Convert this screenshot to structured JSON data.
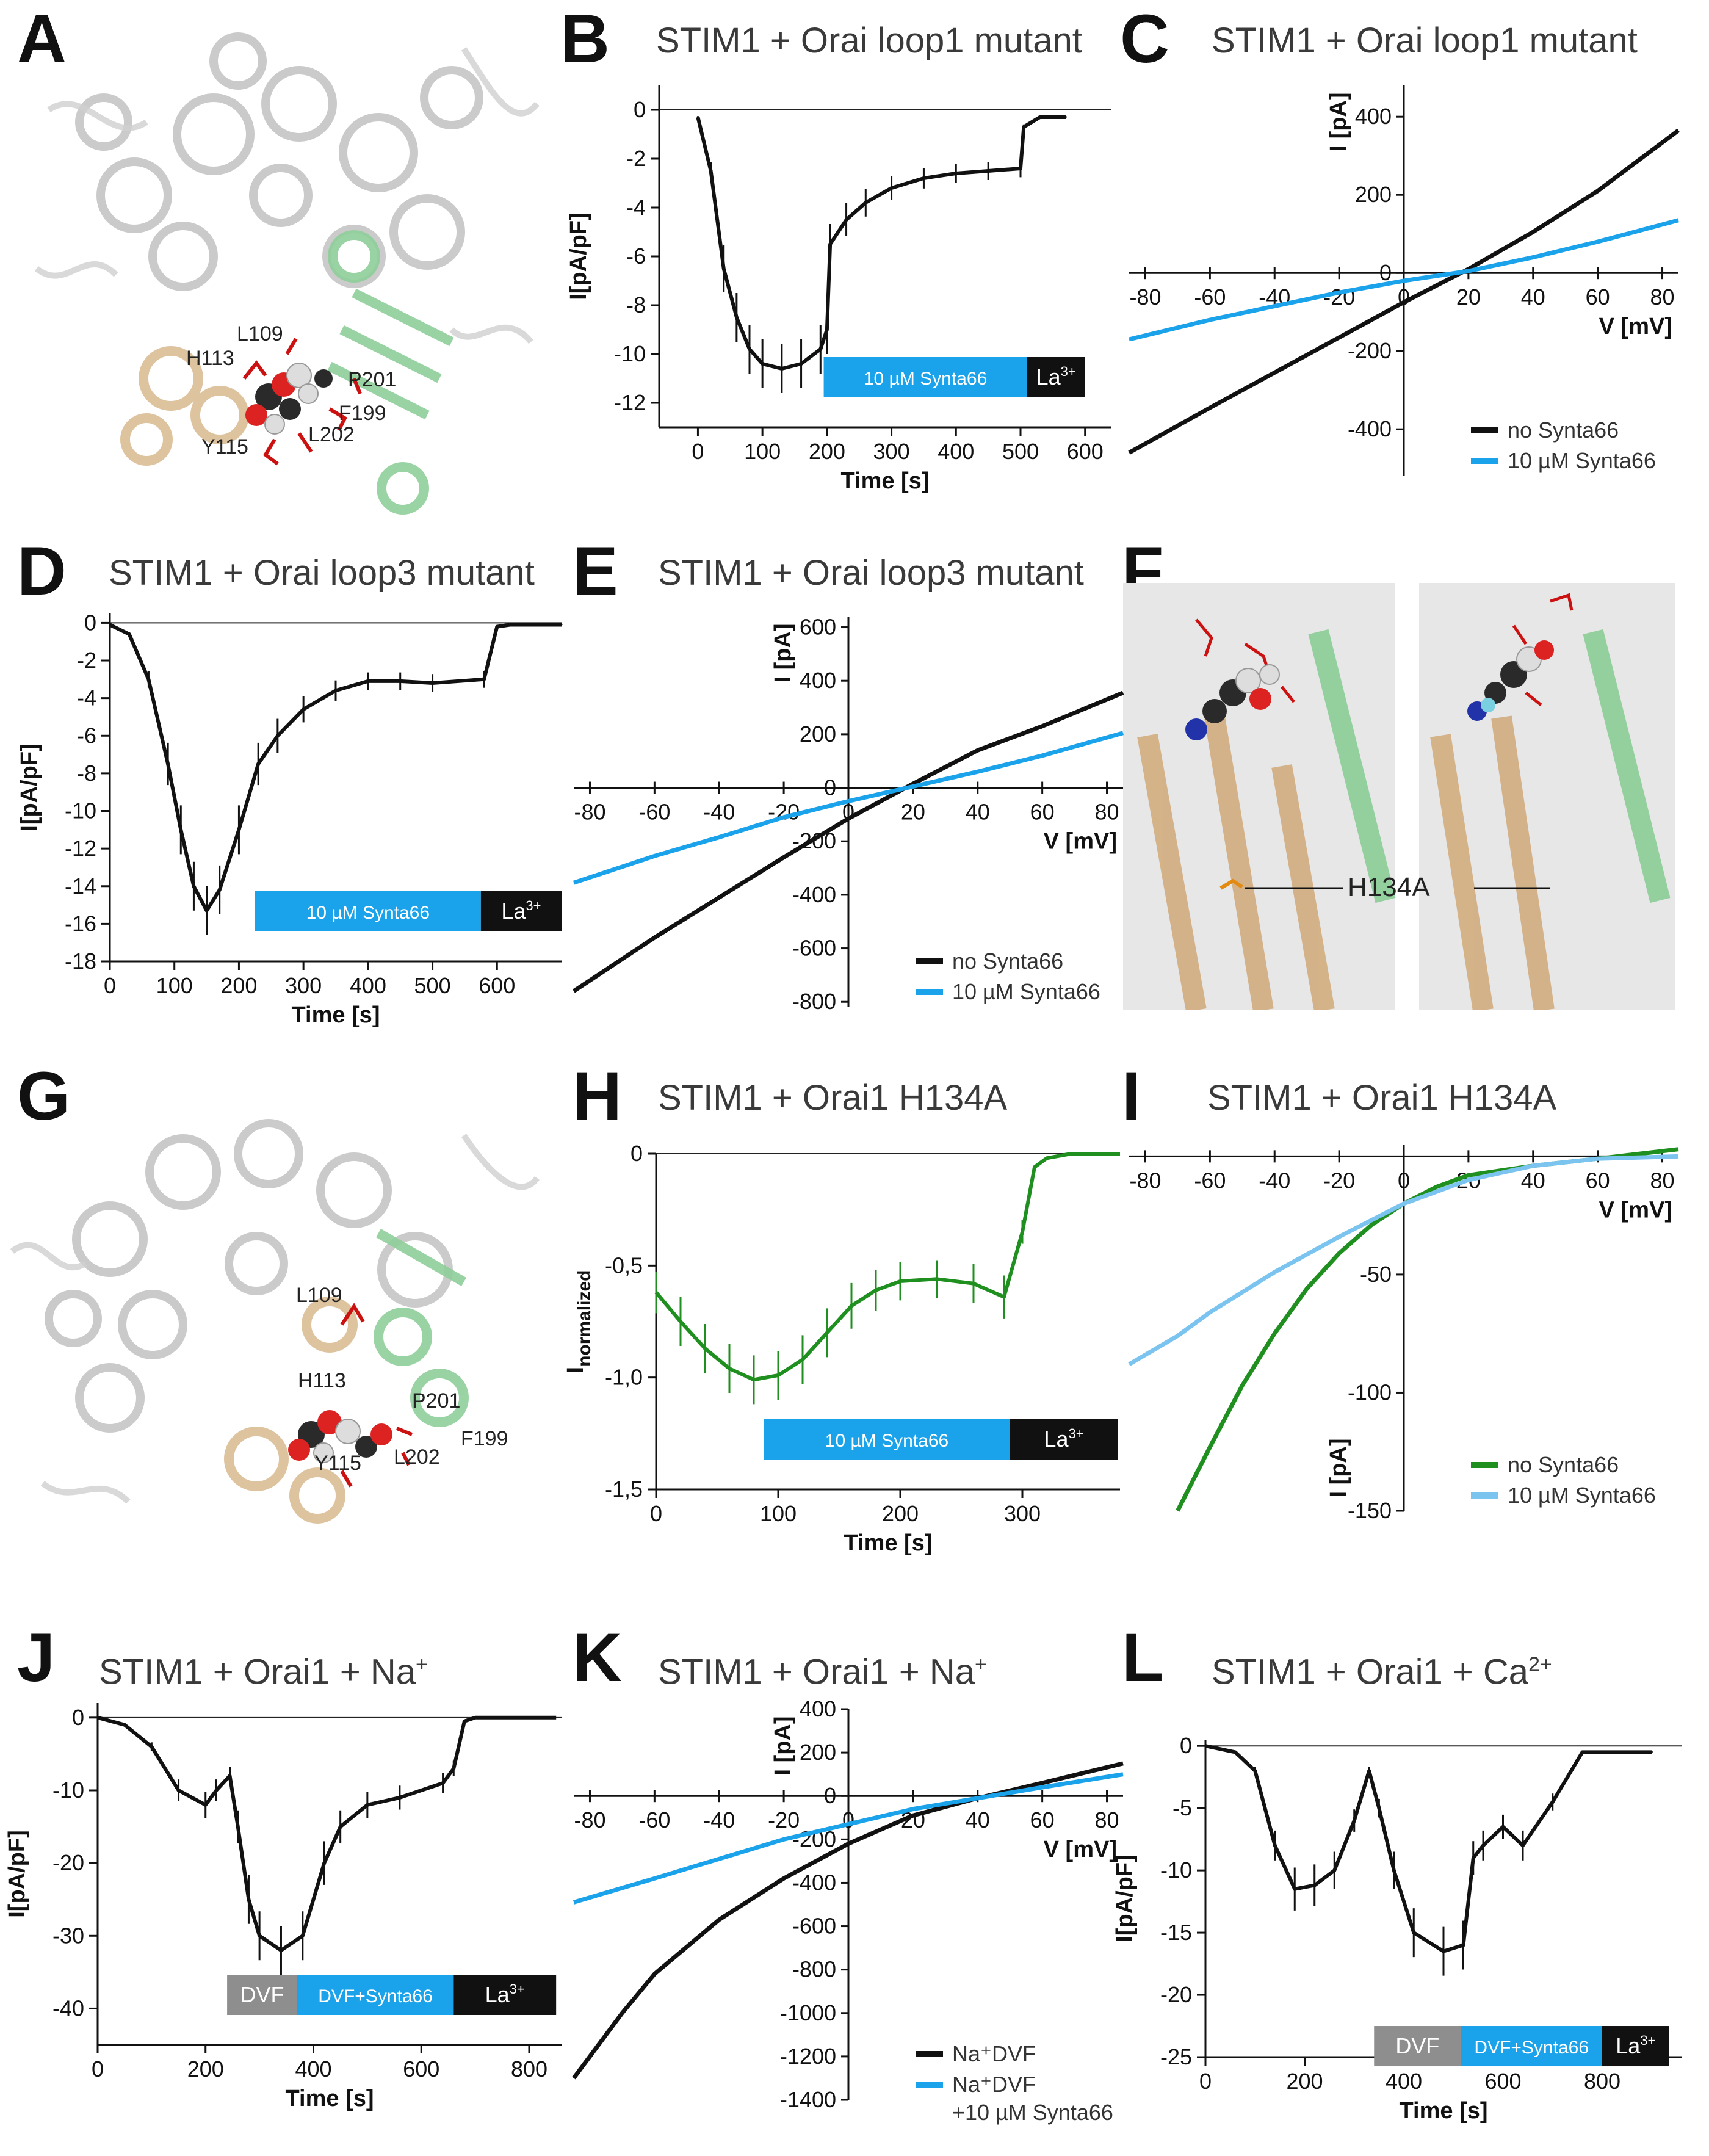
{
  "colors": {
    "black": "#111111",
    "blue": "#1aa3ea",
    "light_blue": "#7cc4f0",
    "green": "#1f8f1f",
    "grey_bar": "#8e8e8e",
    "struct_grey": "#b9b9b9",
    "struct_tan": "#d8b98e",
    "struct_green": "#8fcf9a",
    "residue_red": "#cc1111",
    "orange": "#e38a12"
  },
  "panels": {
    "A": {
      "letter": "A",
      "labels": [
        "L109",
        "H113",
        "P201",
        "F199",
        "Y115",
        "L202"
      ]
    },
    "B": {
      "letter": "B",
      "title": "STIM1 + Orai loop1 mutant"
    },
    "C": {
      "letter": "C",
      "title": "STIM1 + Orai loop1 mutant"
    },
    "D": {
      "letter": "D",
      "title": "STIM1 + Orai loop3 mutant"
    },
    "E": {
      "letter": "E",
      "title": "STIM1 + Orai loop3 mutant"
    },
    "F": {
      "letter": "F",
      "label": "H134A"
    },
    "G": {
      "letter": "G",
      "labels": [
        "L109",
        "H113",
        "P201",
        "F199",
        "Y115",
        "L202"
      ]
    },
    "H": {
      "letter": "H",
      "title": "STIM1 + Orai1 H134A"
    },
    "I": {
      "letter": "I",
      "title": "STIM1 + Orai1 H134A"
    },
    "J": {
      "letter": "J",
      "title": "STIM1 + Orai1 + Na",
      "title_sup": "+"
    },
    "K": {
      "letter": "K",
      "title": "STIM1 + Orai1 + Na",
      "title_sup": "+"
    },
    "L": {
      "letter": "L",
      "title": "STIM1 + Orai1 + Ca",
      "title_sup": "2+"
    }
  },
  "chart_data": [
    {
      "panel": "B",
      "type": "line",
      "xlabel": "Time [s]",
      "ylabel": "I[pA/pF]",
      "xlim": [
        -60,
        640
      ],
      "ylim": [
        -13,
        1
      ],
      "xticks": [
        0,
        100,
        200,
        300,
        400,
        500,
        600
      ],
      "yticks": [
        0,
        -2,
        -4,
        -6,
        -8,
        -10,
        -12
      ],
      "error_bars": true,
      "series": [
        {
          "color": "#111111",
          "x": [
            0,
            20,
            40,
            60,
            80,
            100,
            130,
            160,
            190,
            200,
            205,
            230,
            260,
            300,
            350,
            400,
            450,
            500,
            505,
            530,
            570
          ],
          "y": [
            -0.3,
            -2.5,
            -6.5,
            -8.5,
            -9.8,
            -10.4,
            -10.6,
            -10.4,
            -9.8,
            -9.0,
            -5.5,
            -4.5,
            -3.8,
            -3.2,
            -2.8,
            -2.6,
            -2.5,
            -2.4,
            -0.7,
            -0.3,
            -0.3
          ]
        }
      ],
      "bar": [
        {
          "text": "10 µM Synta66",
          "from": 195,
          "to": 510,
          "color": "#1aa3ea"
        },
        {
          "text": "La",
          "sup": "3+",
          "from": 510,
          "to": 600,
          "color": "#111111"
        }
      ]
    },
    {
      "panel": "C",
      "type": "line",
      "xlabel": "V [mV]",
      "ylabel": "I [pA]",
      "xlim": [
        -85,
        85
      ],
      "ylim": [
        -520,
        480
      ],
      "xticks": [
        -80,
        -60,
        -40,
        -20,
        0,
        20,
        40,
        60,
        80
      ],
      "yticks": [
        400,
        200,
        0,
        -200,
        -400
      ],
      "series": [
        {
          "name": "no Synta66",
          "color": "#111111",
          "x": [
            -85,
            -60,
            -40,
            -20,
            0,
            20,
            40,
            60,
            85
          ],
          "y": [
            -460,
            -345,
            -255,
            -165,
            -75,
            10,
            105,
            210,
            365
          ]
        },
        {
          "name": "10 µM Synta66",
          "color": "#1aa3ea",
          "x": [
            -85,
            -60,
            -40,
            -20,
            0,
            20,
            40,
            60,
            85
          ],
          "y": [
            -170,
            -120,
            -85,
            -50,
            -20,
            5,
            40,
            80,
            135
          ]
        }
      ],
      "legend": "bottom-right"
    },
    {
      "panel": "D",
      "type": "line",
      "xlabel": "Time [s]",
      "ylabel": "I[pA/pF]",
      "xlim": [
        0,
        700
      ],
      "ylim": [
        -18,
        0.5
      ],
      "xticks": [
        0,
        100,
        200,
        300,
        400,
        500,
        600
      ],
      "yticks": [
        0,
        -2,
        -4,
        -6,
        -8,
        -10,
        -12,
        -14,
        -16,
        -18
      ],
      "error_bars": true,
      "series": [
        {
          "color": "#111111",
          "x": [
            0,
            30,
            60,
            90,
            110,
            130,
            150,
            170,
            200,
            230,
            260,
            300,
            350,
            400,
            450,
            500,
            580,
            600,
            620,
            700
          ],
          "y": [
            -0.1,
            -0.6,
            -3,
            -7.5,
            -11,
            -14,
            -15.3,
            -14.2,
            -11,
            -7.5,
            -6,
            -4.6,
            -3.6,
            -3.1,
            -3.1,
            -3.2,
            -3.0,
            -0.2,
            -0.1,
            -0.1
          ]
        }
      ],
      "bar": [
        {
          "text": "10 µM Synta66",
          "from": 225,
          "to": 575,
          "color": "#1aa3ea"
        },
        {
          "text": "La",
          "sup": "3+",
          "from": 575,
          "to": 700,
          "color": "#111111"
        }
      ]
    },
    {
      "panel": "E",
      "type": "line",
      "xlabel": "V [mV]",
      "ylabel": "I [pA]",
      "xlim": [
        -85,
        85
      ],
      "ylim": [
        -820,
        640
      ],
      "xticks": [
        -80,
        -60,
        -40,
        -20,
        0,
        20,
        40,
        60,
        80
      ],
      "yticks": [
        600,
        400,
        200,
        0,
        -200,
        -400,
        -600,
        -800
      ],
      "series": [
        {
          "name": "no Synta66",
          "color": "#111111",
          "x": [
            -85,
            -60,
            -40,
            -20,
            0,
            20,
            40,
            60,
            85
          ],
          "y": [
            -760,
            -560,
            -410,
            -260,
            -115,
            15,
            140,
            230,
            355
          ]
        },
        {
          "name": "10 µM Synta66",
          "color": "#1aa3ea",
          "x": [
            -85,
            -60,
            -40,
            -20,
            0,
            20,
            40,
            60,
            85
          ],
          "y": [
            -355,
            -255,
            -185,
            -110,
            -50,
            5,
            60,
            120,
            205
          ]
        }
      ],
      "legend": "bottom-right"
    },
    {
      "panel": "H",
      "type": "line",
      "xlabel": "Time [s]",
      "ylabel": "I",
      "ylabel_sub": "normalized",
      "xlim": [
        0,
        380
      ],
      "ylim": [
        -1.5,
        0
      ],
      "xticks": [
        0,
        100,
        200,
        300
      ],
      "ytick_labels": [
        "0",
        "-0,5",
        "-1,0",
        "-1,5"
      ],
      "yticks": [
        0,
        -0.5,
        -1.0,
        -1.5
      ],
      "error_bars": true,
      "series": [
        {
          "color": "#1f8f1f",
          "x": [
            0,
            20,
            40,
            60,
            80,
            100,
            120,
            140,
            160,
            180,
            200,
            230,
            260,
            285,
            300,
            310,
            320,
            340,
            380
          ],
          "y": [
            -0.62,
            -0.75,
            -0.87,
            -0.96,
            -1.01,
            -0.99,
            -0.92,
            -0.8,
            -0.68,
            -0.61,
            -0.57,
            -0.56,
            -0.58,
            -0.64,
            -0.35,
            -0.06,
            -0.02,
            0,
            0
          ]
        }
      ],
      "bar": [
        {
          "text": "10 µM Synta66",
          "from": 88,
          "to": 290,
          "color": "#1aa3ea"
        },
        {
          "text": "La",
          "sup": "3+",
          "from": 290,
          "to": 378,
          "color": "#111111"
        }
      ]
    },
    {
      "panel": "I",
      "type": "line",
      "xlabel": "V [mV]",
      "ylabel": "I [pA]",
      "xlim": [
        -85,
        85
      ],
      "ylim": [
        -150,
        5
      ],
      "xticks": [
        -80,
        -60,
        -40,
        -20,
        0,
        20,
        40,
        60,
        80
      ],
      "yticks": [
        -50,
        -100,
        -150
      ],
      "series": [
        {
          "name": "no Synta66",
          "color": "#1f8f1f",
          "x": [
            -70,
            -60,
            -50,
            -40,
            -30,
            -20,
            -10,
            0,
            10,
            20,
            40,
            60,
            85
          ],
          "y": [
            -150,
            -123,
            -97,
            -75,
            -56,
            -41,
            -29,
            -20,
            -13,
            -8,
            -4,
            -1,
            3
          ]
        },
        {
          "name": "10 µM Synta66",
          "color": "#7cc4f0",
          "x": [
            -85,
            -70,
            -60,
            -40,
            -20,
            0,
            20,
            40,
            60,
            85
          ],
          "y": [
            -88,
            -76,
            -66,
            -49,
            -34,
            -20,
            -10,
            -4,
            -1,
            0
          ]
        }
      ],
      "legend": "bottom-right"
    },
    {
      "panel": "J",
      "type": "line",
      "xlabel": "Time [s]",
      "ylabel": "I[pA/pF]",
      "xlim": [
        0,
        860
      ],
      "ylim": [
        -45,
        2
      ],
      "xticks": [
        0,
        200,
        400,
        600,
        800
      ],
      "yticks": [
        0,
        -10,
        -20,
        -30,
        -40
      ],
      "error_bars": true,
      "series": [
        {
          "color": "#111111",
          "x": [
            0,
            50,
            100,
            150,
            200,
            220,
            245,
            260,
            280,
            300,
            340,
            380,
            420,
            450,
            500,
            560,
            640,
            660,
            680,
            700,
            850
          ],
          "y": [
            0,
            -1,
            -4,
            -10,
            -12,
            -10,
            -8,
            -15,
            -25,
            -30,
            -32,
            -30,
            -20,
            -15,
            -12,
            -11,
            -9,
            -7,
            -0.5,
            0,
            0
          ]
        }
      ],
      "bar": [
        {
          "text": "DVF",
          "from": 240,
          "to": 370,
          "color": "#8e8e8e"
        },
        {
          "text": "DVF+Synta66",
          "from": 370,
          "to": 660,
          "color": "#1aa3ea"
        },
        {
          "text": "La",
          "sup": "3+",
          "from": 660,
          "to": 850,
          "color": "#111111"
        }
      ]
    },
    {
      "panel": "K",
      "type": "line",
      "xlabel": "V [mV]",
      "ylabel": "I [pA]",
      "xlim": [
        -85,
        85
      ],
      "ylim": [
        -1400,
        400
      ],
      "xticks": [
        -80,
        -60,
        -40,
        -20,
        0,
        20,
        40,
        60,
        80
      ],
      "yticks": [
        400,
        200,
        0,
        -200,
        -400,
        -600,
        -800,
        -1000,
        -1200,
        -1400
      ],
      "series": [
        {
          "name": "Na⁺DVF",
          "color": "#111111",
          "x": [
            -85,
            -70,
            -60,
            -40,
            -20,
            0,
            20,
            40,
            60,
            85
          ],
          "y": [
            -1300,
            -1000,
            -820,
            -570,
            -380,
            -220,
            -90,
            -10,
            60,
            150
          ]
        },
        {
          "name": "Na⁺DVF +10 µM Synta66",
          "color": "#1aa3ea",
          "x": [
            -85,
            -60,
            -40,
            -20,
            0,
            20,
            40,
            60,
            85
          ],
          "y": [
            -490,
            -380,
            -290,
            -200,
            -130,
            -60,
            -10,
            40,
            100
          ]
        }
      ],
      "legend": "bottom-right"
    },
    {
      "panel": "L",
      "type": "line",
      "xlabel": "Time [s]",
      "ylabel": "I[pA/pF]",
      "xlim": [
        0,
        960
      ],
      "ylim": [
        -25,
        0.5
      ],
      "xticks": [
        0,
        200,
        400,
        600,
        800
      ],
      "yticks": [
        0,
        -5,
        -10,
        -15,
        -20,
        -25
      ],
      "error_bars": true,
      "series": [
        {
          "color": "#111111",
          "x": [
            0,
            60,
            100,
            140,
            180,
            220,
            260,
            300,
            330,
            350,
            380,
            420,
            480,
            520,
            540,
            560,
            600,
            640,
            700,
            760,
            900
          ],
          "y": [
            0,
            -0.5,
            -2,
            -8,
            -11.5,
            -11.2,
            -10,
            -6,
            -2,
            -5,
            -10,
            -15,
            -16.5,
            -16,
            -9,
            -8,
            -6.5,
            -8,
            -4.5,
            -0.5,
            -0.5
          ]
        }
      ],
      "bar": [
        {
          "text": "DVF",
          "from": 340,
          "to": 515,
          "color": "#8e8e8e"
        },
        {
          "text": "DVF+Synta66",
          "from": 515,
          "to": 800,
          "color": "#1aa3ea"
        },
        {
          "text": "La",
          "sup": "3+",
          "from": 800,
          "to": 935,
          "color": "#111111"
        }
      ]
    }
  ]
}
